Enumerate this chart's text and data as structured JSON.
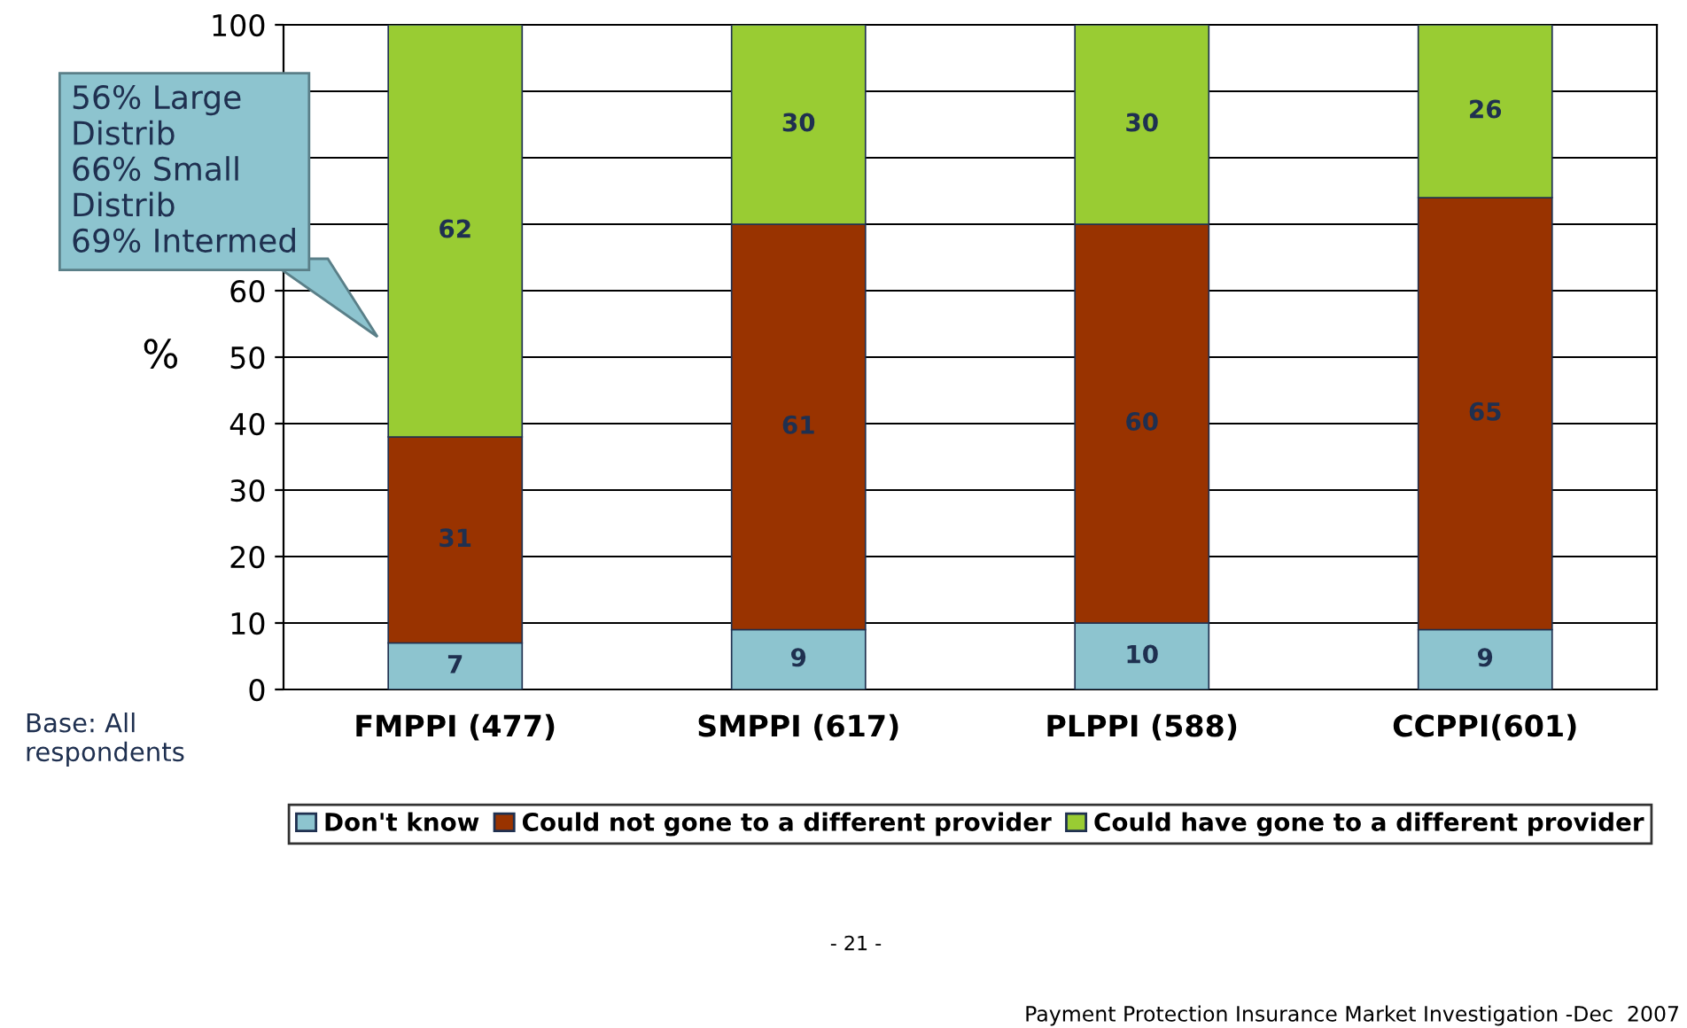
{
  "chart_data": {
    "type": "bar",
    "stacked": true,
    "ylabel": "%",
    "categories": [
      "FMPPI (477)",
      "SMPPI (617)",
      "PLPPI (588)",
      "CCPPI(601)"
    ],
    "series": [
      {
        "name": "Don't know",
        "color": "#8dc4cf",
        "values": [
          7,
          9,
          10,
          9
        ]
      },
      {
        "name": "Could not gone to a different provider",
        "color": "#993300",
        "values": [
          31,
          61,
          60,
          65
        ]
      },
      {
        "name": "Could have gone to a different provider",
        "color": "#99cc33",
        "values": [
          62,
          30,
          30,
          26
        ]
      }
    ],
    "ylim": [
      0,
      100
    ],
    "yticks": [
      0,
      10,
      20,
      30,
      40,
      50,
      60,
      {
        "value": 70,
        "label": null
      },
      {
        "value": 80,
        "label": null
      },
      {
        "value": 90,
        "label": null
      },
      100
    ],
    "grid": "y",
    "legend": "bottom",
    "data_labels": true,
    "annotations": [
      "56% Large\nDistrib\n66% Small\nDistrib\n69% Intermed",
      "Base: All\nrespondents",
      "- 21 -",
      "Payment Protection Insurance Market Investigation -Dec  2007"
    ]
  }
}
